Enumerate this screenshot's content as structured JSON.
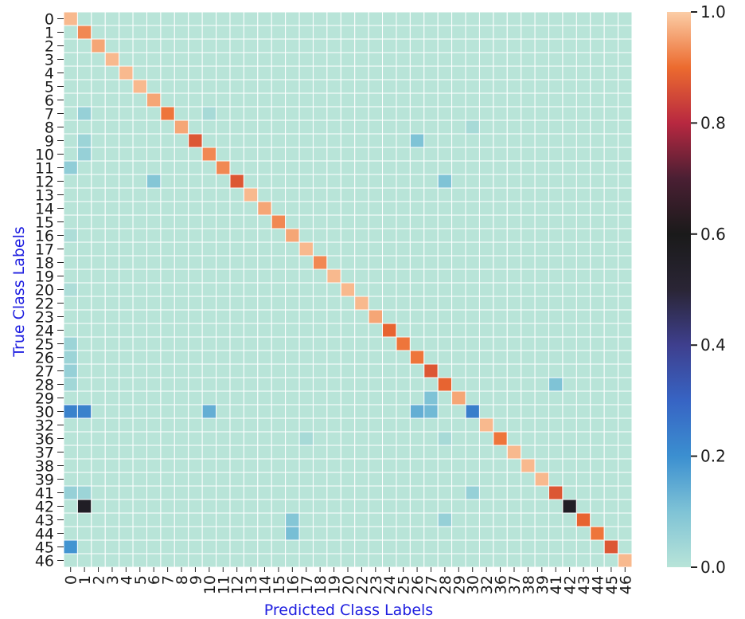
{
  "chart_data": {
    "type": "heatmap",
    "title": "",
    "xlabel": "Predicted Class Labels",
    "ylabel": "True Class Labels",
    "label_color": "#1f1fe0",
    "labels": [
      "0",
      "1",
      "2",
      "3",
      "4",
      "5",
      "6",
      "7",
      "8",
      "9",
      "10",
      "11",
      "12",
      "13",
      "14",
      "15",
      "16",
      "17",
      "18",
      "19",
      "20",
      "22",
      "23",
      "24",
      "25",
      "26",
      "27",
      "28",
      "29",
      "30",
      "32",
      "36",
      "37",
      "38",
      "39",
      "41",
      "42",
      "43",
      "44",
      "45",
      "46"
    ],
    "colorbar": {
      "range": [
        0.0,
        1.0
      ],
      "ticks": [
        "0.0",
        "0.2",
        "0.4",
        "0.6",
        "0.8",
        "1.0"
      ]
    },
    "colormap_stops": [
      {
        "v": 0.0,
        "c": "#b8e4d8"
      },
      {
        "v": 0.1,
        "c": "#7fc3d6"
      },
      {
        "v": 0.2,
        "c": "#3b8fd0"
      },
      {
        "v": 0.3,
        "c": "#3764c4"
      },
      {
        "v": 0.4,
        "c": "#3e3f8e"
      },
      {
        "v": 0.5,
        "c": "#2a2535"
      },
      {
        "v": 0.6,
        "c": "#1a1a1a"
      },
      {
        "v": 0.7,
        "c": "#4a1f33"
      },
      {
        "v": 0.8,
        "c": "#b82840"
      },
      {
        "v": 0.9,
        "c": "#ec6b2f"
      },
      {
        "v": 1.0,
        "c": "#fbcda6"
      }
    ],
    "diagonal": [
      0.98,
      0.93,
      0.96,
      0.98,
      0.98,
      0.98,
      0.96,
      0.91,
      0.96,
      0.87,
      0.93,
      0.93,
      0.87,
      0.98,
      0.96,
      0.93,
      0.96,
      0.98,
      0.93,
      0.98,
      0.98,
      0.98,
      0.96,
      0.89,
      0.91,
      0.91,
      0.87,
      0.89,
      0.96,
      0.24,
      0.98,
      0.91,
      0.98,
      0.98,
      0.98,
      0.87,
      0.56,
      0.89,
      0.91,
      0.87,
      0.98
    ],
    "off_diagonal": [
      [
        7,
        1,
        0.06
      ],
      [
        9,
        1,
        0.05
      ],
      [
        9,
        25,
        0.1
      ],
      [
        10,
        1,
        0.06
      ],
      [
        11,
        0,
        0.07
      ],
      [
        12,
        6,
        0.09
      ],
      [
        12,
        27,
        0.1
      ],
      [
        24,
        0,
        0.05
      ],
      [
        25,
        0,
        0.05
      ],
      [
        26,
        0,
        0.06
      ],
      [
        27,
        0,
        0.04
      ],
      [
        27,
        35,
        0.1
      ],
      [
        28,
        26,
        0.1
      ],
      [
        29,
        0,
        0.23
      ],
      [
        29,
        1,
        0.23
      ],
      [
        29,
        10,
        0.14
      ],
      [
        29,
        25,
        0.14
      ],
      [
        29,
        26,
        0.12
      ],
      [
        31,
        17,
        0.03
      ],
      [
        31,
        27,
        0.03
      ],
      [
        35,
        0,
        0.06
      ],
      [
        35,
        1,
        0.05
      ],
      [
        35,
        29,
        0.06
      ],
      [
        36,
        1,
        0.56
      ],
      [
        37,
        16,
        0.09
      ],
      [
        37,
        27,
        0.06
      ],
      [
        38,
        16,
        0.11
      ],
      [
        39,
        0,
        0.19
      ],
      [
        8,
        29,
        0.03
      ],
      [
        7,
        10,
        0.03
      ],
      [
        16,
        0,
        0.02
      ],
      [
        20,
        0,
        0.02
      ]
    ]
  }
}
